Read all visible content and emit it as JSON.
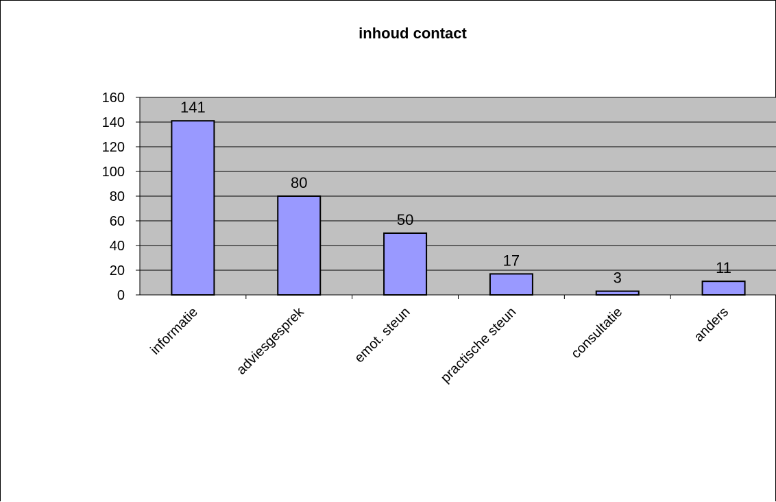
{
  "chart_data": {
    "type": "bar",
    "title": "inhoud contact",
    "categories": [
      "informatie",
      "adviesgesprek",
      "emot. steun",
      "practische steun",
      "consultatie",
      "anders"
    ],
    "values": [
      141,
      80,
      50,
      17,
      3,
      11
    ],
    "data_labels": [
      "141",
      "80",
      "50",
      "17",
      "3",
      "11"
    ],
    "ylim": [
      0,
      160
    ],
    "yticks": [
      0,
      20,
      40,
      60,
      80,
      100,
      120,
      140,
      160
    ],
    "xlabel": "",
    "ylabel": "",
    "grid": true,
    "legend": "none",
    "colors": {
      "bar_fill": "#9999ff",
      "bar_stroke": "#000000",
      "plot_background": "#c0c0c0",
      "gridline": "#000000"
    }
  }
}
